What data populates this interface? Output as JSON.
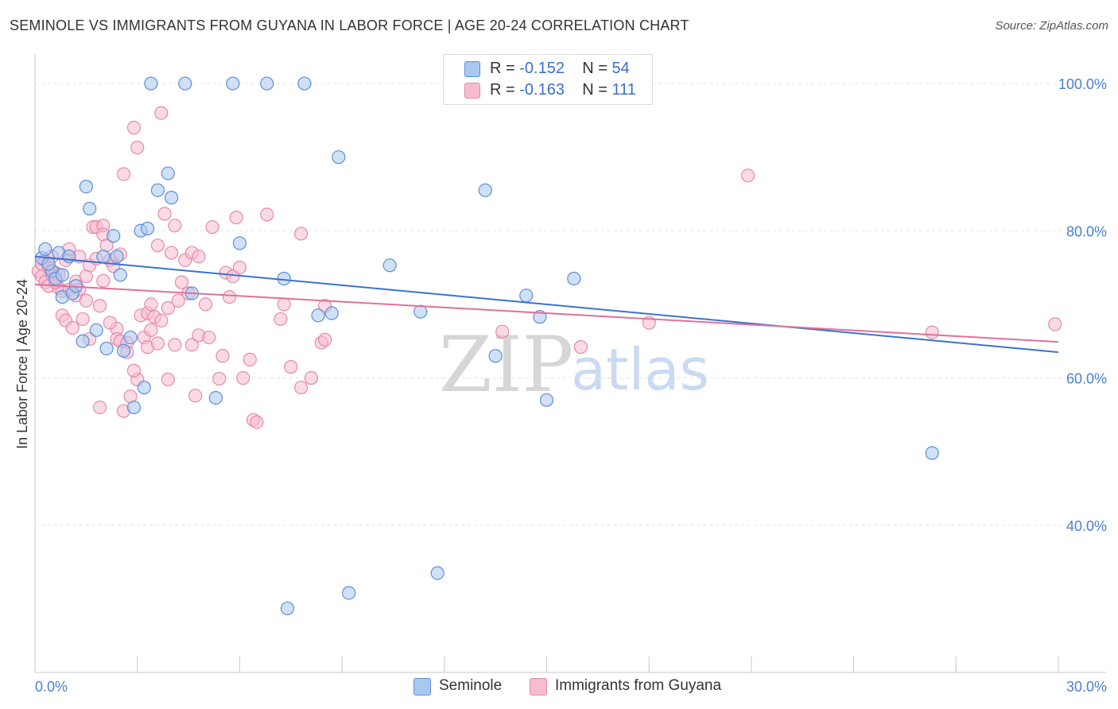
{
  "header": {
    "title": "SEMINOLE VS IMMIGRANTS FROM GUYANA IN LABOR FORCE | AGE 20-24 CORRELATION CHART",
    "source": "Source: ZipAtlas.com"
  },
  "legend": {
    "series1": {
      "r_label": "R = ",
      "r_value": "-0.152",
      "n_label": "N = ",
      "n_value": "54"
    },
    "series2": {
      "r_label": "R = ",
      "r_value": "-0.163",
      "n_label": "N = ",
      "n_value": "111"
    }
  },
  "bottom_legend": {
    "series1_label": "Seminole",
    "series2_label": "Immigrants from Guyana"
  },
  "watermark": {
    "zip": "ZIP",
    "atlas": "atlas"
  },
  "colors": {
    "seminole_fill": "#a9c8f0",
    "seminole_stroke": "#5b8fd8",
    "seminole_line": "#3a73cf",
    "guyana_fill": "#f7bcd0",
    "guyana_stroke": "#e58aa8",
    "guyana_line": "#e0709a",
    "tick_text": "#4a7fd4"
  },
  "chart_data": {
    "type": "scatter",
    "title": "SEMINOLE VS IMMIGRANTS FROM GUYANA IN LABOR FORCE | AGE 20-24 CORRELATION CHART",
    "xlabel": "",
    "ylabel": "In Labor Force | Age 20-24",
    "xlim": [
      0,
      30
    ],
    "ylim": [
      20,
      104
    ],
    "x_tick_labels": [
      "0.0%",
      "30.0%"
    ],
    "y_ticks": [
      40,
      60,
      80,
      100
    ],
    "y_tick_labels": [
      "40.0%",
      "60.0%",
      "80.0%",
      "100.0%"
    ],
    "grid": true,
    "legend_position": "top-center",
    "series": [
      {
        "name": "Seminole",
        "R": -0.152,
        "N": 54,
        "trend": {
          "x": [
            0,
            30
          ],
          "y": [
            76.5,
            63.5
          ]
        },
        "points": [
          [
            0.2,
            76.3
          ],
          [
            0.3,
            77.5
          ],
          [
            0.5,
            74.5
          ],
          [
            0.6,
            73.5
          ],
          [
            0.7,
            77
          ],
          [
            0.8,
            74
          ],
          [
            0.8,
            71
          ],
          [
            1.0,
            76.5
          ],
          [
            1.1,
            71.5
          ],
          [
            1.2,
            72.5
          ],
          [
            1.4,
            65
          ],
          [
            1.5,
            86
          ],
          [
            1.6,
            83
          ],
          [
            1.8,
            66.5
          ],
          [
            2.0,
            76.5
          ],
          [
            2.1,
            64
          ],
          [
            2.3,
            79.3
          ],
          [
            2.4,
            76.5
          ],
          [
            2.5,
            74
          ],
          [
            2.6,
            63.7
          ],
          [
            2.8,
            65.5
          ],
          [
            2.9,
            56
          ],
          [
            3.1,
            80
          ],
          [
            3.2,
            58.7
          ],
          [
            3.3,
            80.3
          ],
          [
            3.4,
            100
          ],
          [
            3.6,
            85.5
          ],
          [
            3.9,
            87.8
          ],
          [
            4.0,
            84.5
          ],
          [
            4.4,
            100
          ],
          [
            4.6,
            71.5
          ],
          [
            5.3,
            57.3
          ],
          [
            5.8,
            100
          ],
          [
            6.0,
            78.3
          ],
          [
            6.8,
            100
          ],
          [
            7.3,
            73.5
          ],
          [
            7.4,
            28.7
          ],
          [
            7.9,
            100
          ],
          [
            8.3,
            68.5
          ],
          [
            8.7,
            68.8
          ],
          [
            8.9,
            90
          ],
          [
            9.2,
            30.8
          ],
          [
            10.4,
            75.3
          ],
          [
            11.3,
            69
          ],
          [
            11.8,
            33.5
          ],
          [
            13.2,
            85.5
          ],
          [
            13.5,
            63
          ],
          [
            14.4,
            71.2
          ],
          [
            14.8,
            68.3
          ],
          [
            15.0,
            57
          ],
          [
            15.8,
            73.5
          ],
          [
            16.7,
            100
          ],
          [
            26.3,
            49.8
          ],
          [
            0.4,
            75.5
          ]
        ]
      },
      {
        "name": "Immigrants from Guyana",
        "R": -0.163,
        "N": 111,
        "trend": {
          "x": [
            0,
            30
          ],
          "y": [
            72.7,
            64.9
          ]
        },
        "points": [
          [
            0.1,
            74.5
          ],
          [
            0.2,
            75.5
          ],
          [
            0.2,
            73.8
          ],
          [
            0.3,
            76
          ],
          [
            0.3,
            73
          ],
          [
            0.4,
            75
          ],
          [
            0.4,
            72.5
          ],
          [
            0.5,
            74
          ],
          [
            0.5,
            76.5
          ],
          [
            0.6,
            74.3
          ],
          [
            0.7,
            72.2
          ],
          [
            0.7,
            74
          ],
          [
            0.8,
            71.8
          ],
          [
            0.8,
            68.5
          ],
          [
            0.9,
            67.8
          ],
          [
            1.0,
            72
          ],
          [
            1.0,
            76.5
          ],
          [
            1.1,
            66.8
          ],
          [
            1.2,
            71.2
          ],
          [
            1.2,
            73.1
          ],
          [
            1.3,
            72
          ],
          [
            1.3,
            76.5
          ],
          [
            1.4,
            68
          ],
          [
            1.5,
            73.8
          ],
          [
            1.6,
            75.3
          ],
          [
            1.6,
            65.3
          ],
          [
            1.7,
            80.5
          ],
          [
            1.8,
            80.5
          ],
          [
            1.8,
            76.2
          ],
          [
            1.9,
            69.8
          ],
          [
            1.9,
            56
          ],
          [
            2.0,
            73.2
          ],
          [
            2.0,
            80.7
          ],
          [
            2.0,
            79.5
          ],
          [
            2.1,
            78
          ],
          [
            2.2,
            76
          ],
          [
            2.3,
            75.2
          ],
          [
            2.4,
            66.7
          ],
          [
            2.4,
            65.3
          ],
          [
            2.5,
            76.8
          ],
          [
            2.5,
            65
          ],
          [
            2.6,
            55.5
          ],
          [
            2.6,
            87.7
          ],
          [
            2.7,
            64.8
          ],
          [
            2.8,
            57.5
          ],
          [
            2.9,
            94
          ],
          [
            3.0,
            59.8
          ],
          [
            3.0,
            91.3
          ],
          [
            3.1,
            68.5
          ],
          [
            3.2,
            65.5
          ],
          [
            3.3,
            64.2
          ],
          [
            3.3,
            68.8
          ],
          [
            3.4,
            70
          ],
          [
            3.5,
            68.3
          ],
          [
            3.6,
            64.7
          ],
          [
            3.6,
            78
          ],
          [
            3.7,
            96
          ],
          [
            3.7,
            67.8
          ],
          [
            3.8,
            82.3
          ],
          [
            3.9,
            69.5
          ],
          [
            3.9,
            59.8
          ],
          [
            4.0,
            77
          ],
          [
            4.1,
            80.7
          ],
          [
            4.1,
            64.5
          ],
          [
            4.2,
            70.5
          ],
          [
            4.3,
            73
          ],
          [
            4.4,
            76
          ],
          [
            4.6,
            64.5
          ],
          [
            4.6,
            77
          ],
          [
            4.7,
            57.6
          ],
          [
            4.8,
            76.5
          ],
          [
            4.8,
            65.8
          ],
          [
            5.0,
            70
          ],
          [
            5.1,
            65.5
          ],
          [
            5.2,
            80.5
          ],
          [
            5.4,
            59.9
          ],
          [
            5.6,
            74.3
          ],
          [
            5.7,
            71
          ],
          [
            5.8,
            73.8
          ],
          [
            5.9,
            81.8
          ],
          [
            6.0,
            75
          ],
          [
            6.1,
            60
          ],
          [
            6.4,
            54.3
          ],
          [
            6.5,
            54
          ],
          [
            6.8,
            82.2
          ],
          [
            7.2,
            68
          ],
          [
            7.3,
            70
          ],
          [
            7.8,
            58.7
          ],
          [
            7.8,
            79.6
          ],
          [
            8.1,
            60
          ],
          [
            8.4,
            64.8
          ],
          [
            8.5,
            69.8
          ],
          [
            8.5,
            65.2
          ],
          [
            13.7,
            66.3
          ],
          [
            16.0,
            64.2
          ],
          [
            18.0,
            67.5
          ],
          [
            20.9,
            87.5
          ],
          [
            26.3,
            66.2
          ],
          [
            29.9,
            67.3
          ],
          [
            2.2,
            67.5
          ],
          [
            1.0,
            77.5
          ],
          [
            0.6,
            73
          ],
          [
            0.9,
            76
          ],
          [
            1.5,
            70.5
          ],
          [
            2.7,
            63.5
          ],
          [
            3.4,
            66.5
          ],
          [
            4.5,
            71.5
          ],
          [
            5.5,
            63
          ],
          [
            6.3,
            62.5
          ],
          [
            7.5,
            61.5
          ],
          [
            2.9,
            61
          ]
        ]
      }
    ]
  }
}
